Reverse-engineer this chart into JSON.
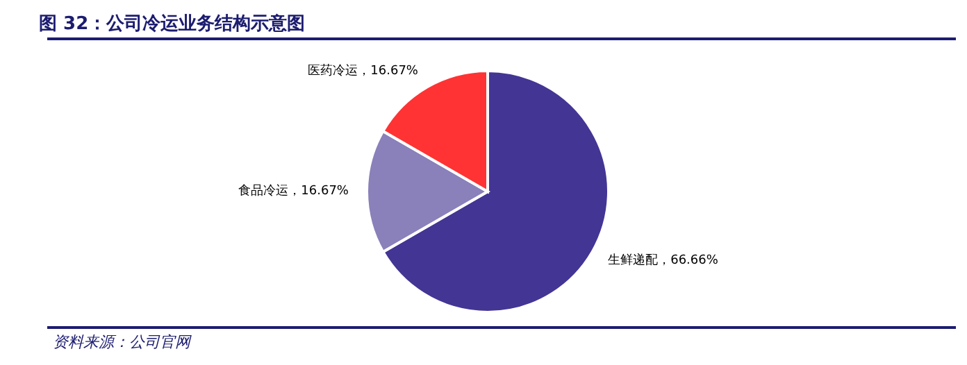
{
  "chart_data": {
    "type": "pie",
    "title": "图 32：公司冷运业务结构示意图",
    "categories": [
      "生鲜递配",
      "食品冷运",
      "医药冷运"
    ],
    "values": [
      66.66,
      16.67,
      16.67
    ],
    "colors": [
      "#433594",
      "#8a80ba",
      "#ff3333"
    ],
    "value_labels": [
      "，66.66%",
      "，16.67%",
      "，16.67%"
    ],
    "annotations": [
      "资料来源：公司官网"
    ]
  }
}
